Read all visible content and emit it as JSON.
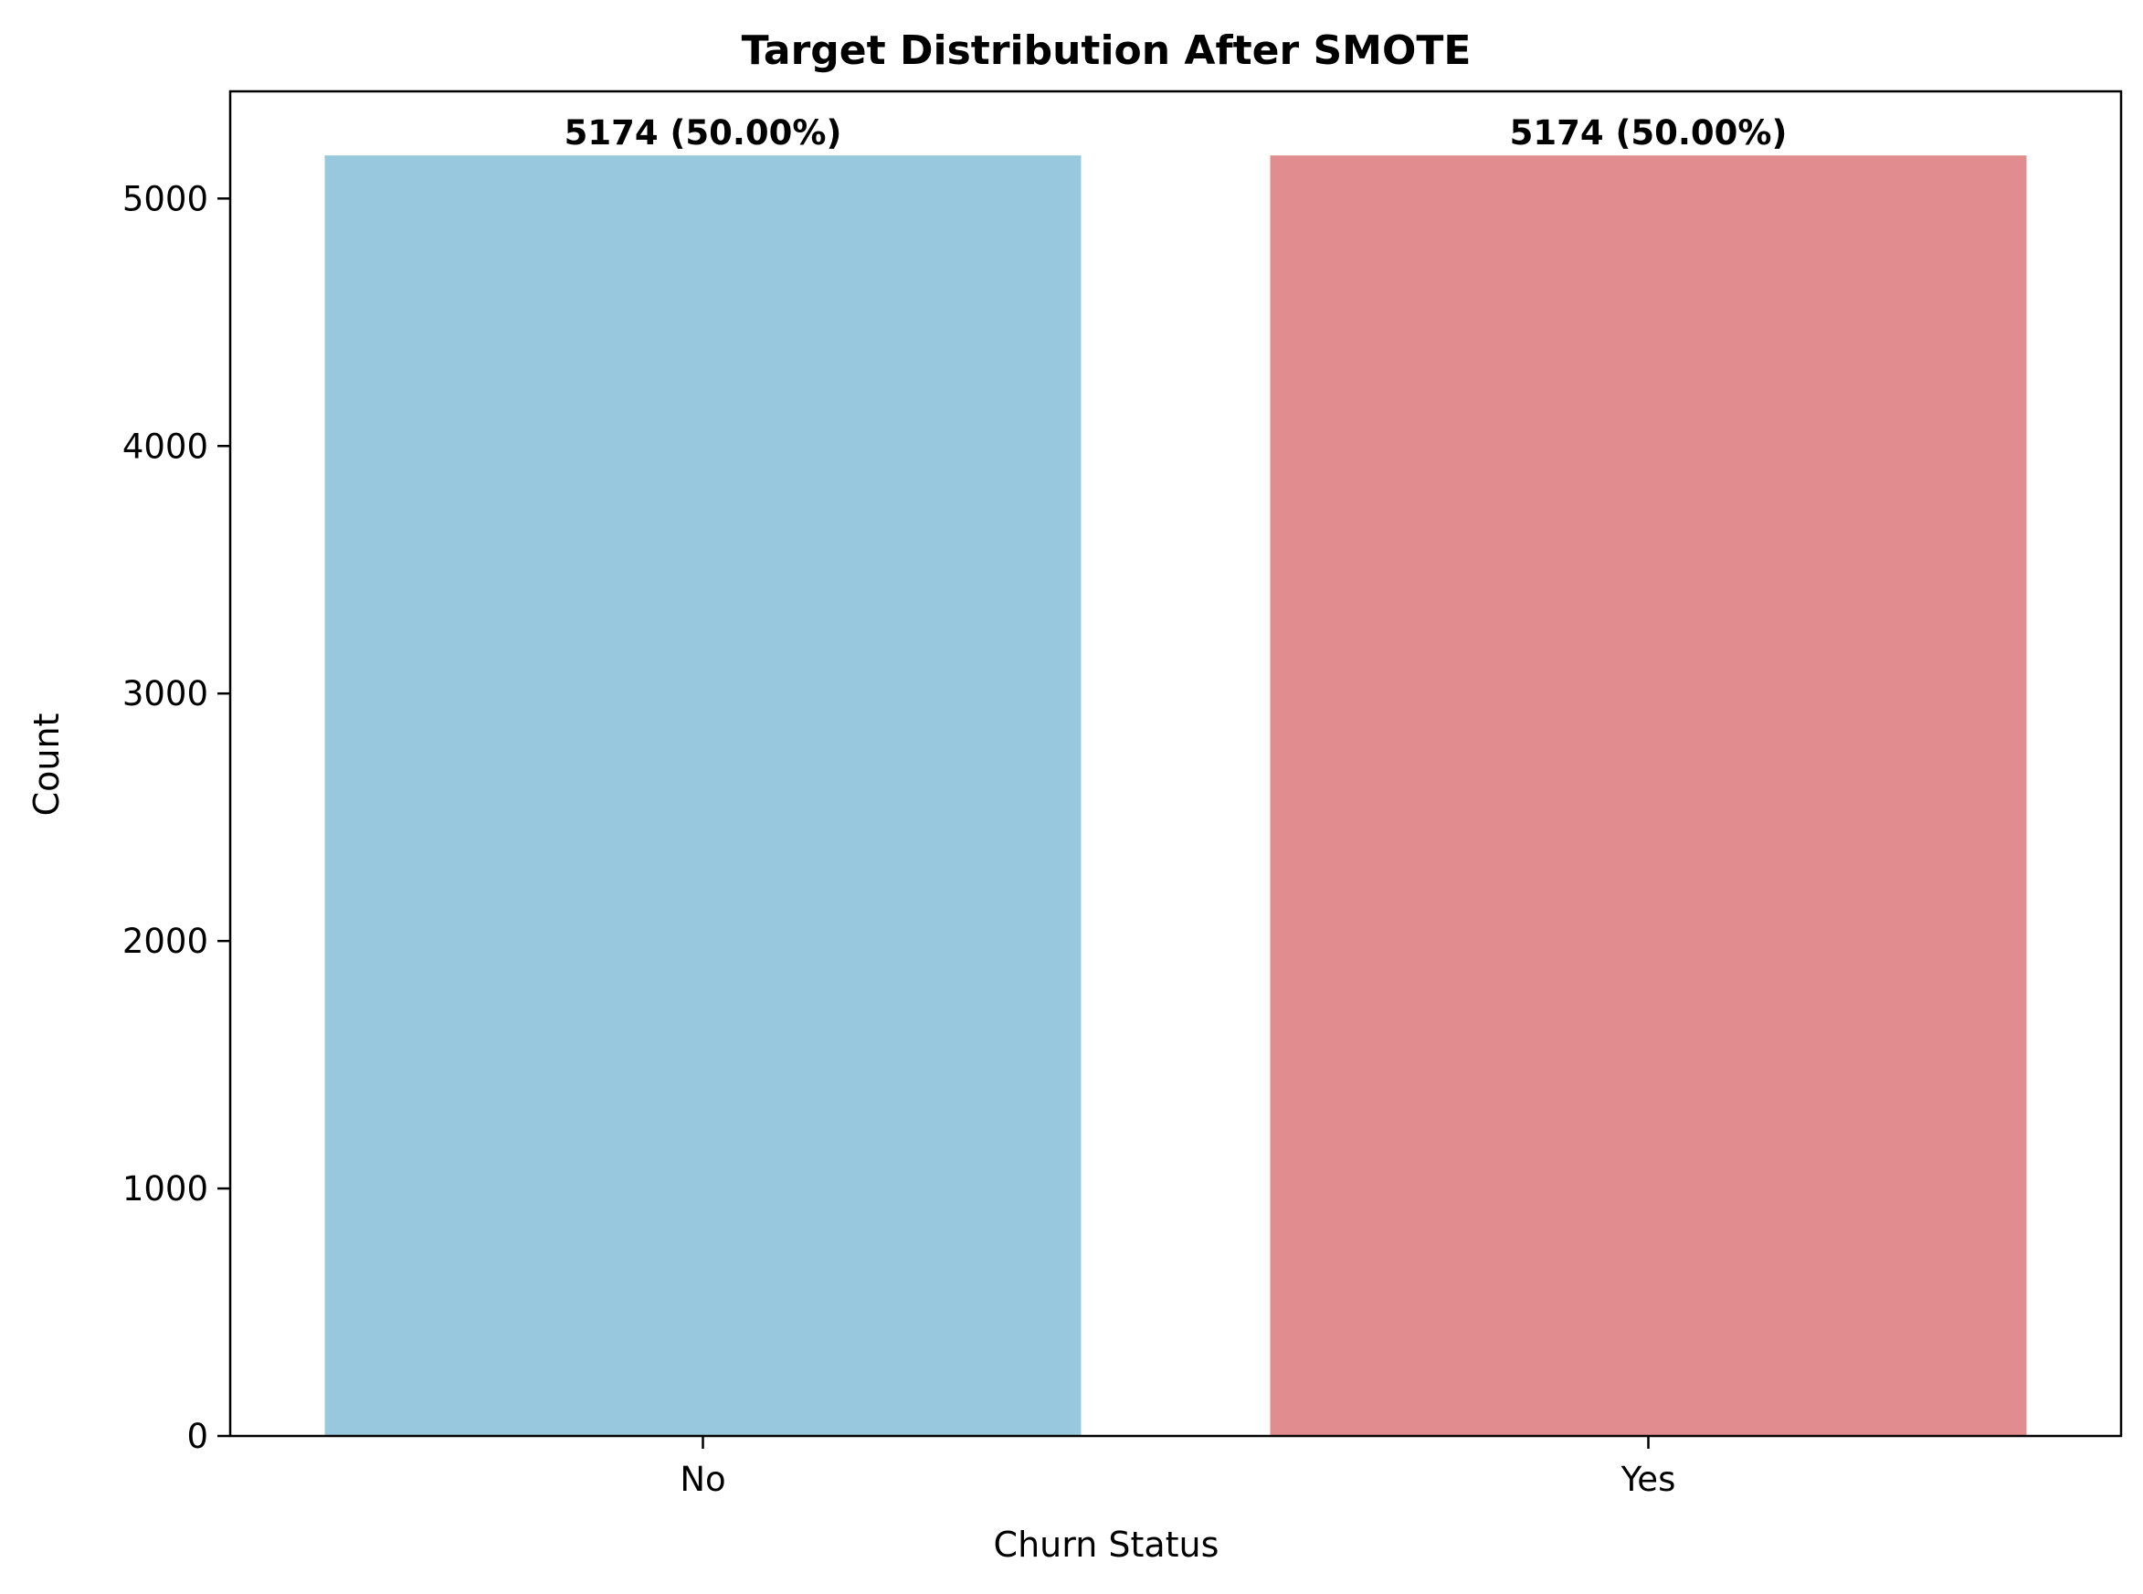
{
  "chart_data": {
    "type": "bar",
    "title": "Target Distribution After SMOTE",
    "xlabel": "Churn Status",
    "ylabel": "Count",
    "categories": [
      "No",
      "Yes"
    ],
    "values": [
      5174,
      5174
    ],
    "data_labels": [
      "5174 (50.00%)",
      "5174 (50.00%)"
    ],
    "colors": [
      "#97c8de",
      "#e18c8e"
    ],
    "ylim": [
      0,
      5433
    ],
    "yticks": [
      0,
      1000,
      2000,
      3000,
      4000,
      5000
    ],
    "grid": false,
    "legend": "none"
  }
}
